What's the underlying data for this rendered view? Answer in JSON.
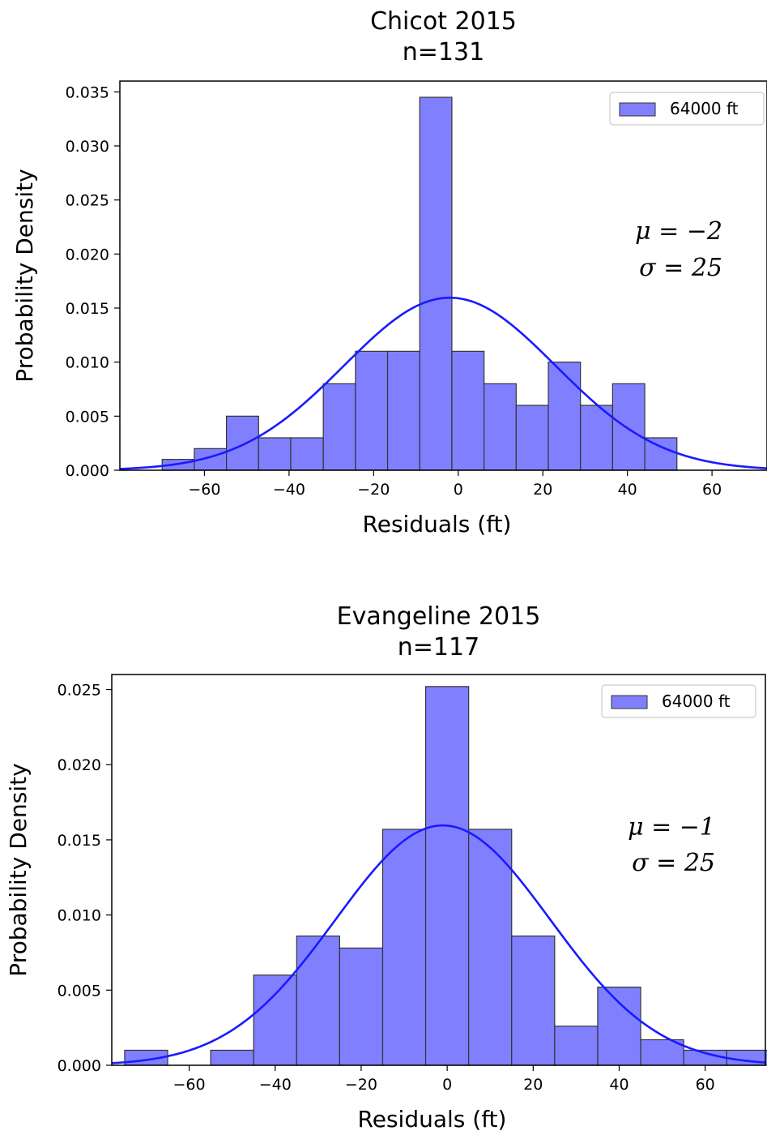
{
  "chart_data": [
    {
      "type": "bar",
      "title": "Chicot 2015",
      "subtitle": "n=131",
      "xlabel": "Residuals (ft)",
      "ylabel": "Probability Density",
      "xlim": [
        -80,
        73
      ],
      "ylim": [
        0,
        0.036
      ],
      "xticks": [
        -60,
        -40,
        -20,
        0,
        20,
        40,
        60
      ],
      "yticks": [
        0.0,
        0.005,
        0.01,
        0.015,
        0.02,
        0.025,
        0.03,
        0.035
      ],
      "ytick_decimals": 3,
      "bins": [
        {
          "x0": -70,
          "x1": -62.4,
          "value": 0.001
        },
        {
          "x0": -62.4,
          "x1": -54.8,
          "value": 0.002
        },
        {
          "x0": -54.8,
          "x1": -47.2,
          "value": 0.005
        },
        {
          "x0": -47.2,
          "x1": -39.6,
          "value": 0.003
        },
        {
          "x0": -39.6,
          "x1": -31.9,
          "value": 0.003
        },
        {
          "x0": -31.9,
          "x1": -24.3,
          "value": 0.008
        },
        {
          "x0": -24.3,
          "x1": -16.7,
          "value": 0.011
        },
        {
          "x0": -16.7,
          "x1": -9.1,
          "value": 0.011
        },
        {
          "x0": -9.1,
          "x1": -1.5,
          "value": 0.0345
        },
        {
          "x0": -1.5,
          "x1": 6.1,
          "value": 0.011
        },
        {
          "x0": 6.1,
          "x1": 13.7,
          "value": 0.008
        },
        {
          "x0": 13.7,
          "x1": 21.3,
          "value": 0.006
        },
        {
          "x0": 21.3,
          "x1": 28.9,
          "value": 0.01
        },
        {
          "x0": 28.9,
          "x1": 36.5,
          "value": 0.006
        },
        {
          "x0": 36.5,
          "x1": 44.1,
          "value": 0.008
        },
        {
          "x0": 44.1,
          "x1": 51.7,
          "value": 0.003
        }
      ],
      "fit": {
        "mu": -2,
        "sigma": 25
      },
      "legend": {
        "label": "64000 ft",
        "position": "top-right"
      },
      "stats": {
        "mu_text": "μ = −2",
        "sigma_text": "σ = 25"
      },
      "bar_color": "#8080ff",
      "line_color": "#1a1aff"
    },
    {
      "type": "bar",
      "title": "Evangeline 2015",
      "subtitle": "n=117",
      "xlabel": "Residuals (ft)",
      "ylabel": "Probability Density",
      "xlim": [
        -78,
        74
      ],
      "ylim": [
        0,
        0.026
      ],
      "xticks": [
        -60,
        -40,
        -20,
        0,
        20,
        40,
        60
      ],
      "yticks": [
        0.0,
        0.005,
        0.01,
        0.015,
        0.02,
        0.025
      ],
      "ytick_decimals": 3,
      "bins": [
        {
          "x0": -75,
          "x1": -65,
          "value": 0.001
        },
        {
          "x0": -65,
          "x1": -55,
          "value": 0.0
        },
        {
          "x0": -55,
          "x1": -45,
          "value": 0.001
        },
        {
          "x0": -45,
          "x1": -35,
          "value": 0.006
        },
        {
          "x0": -35,
          "x1": -25,
          "value": 0.0086
        },
        {
          "x0": -25,
          "x1": -15,
          "value": 0.0078
        },
        {
          "x0": -15,
          "x1": -5,
          "value": 0.0157
        },
        {
          "x0": -5,
          "x1": 5,
          "value": 0.0252
        },
        {
          "x0": 5,
          "x1": 15,
          "value": 0.0157
        },
        {
          "x0": 15,
          "x1": 25,
          "value": 0.0086
        },
        {
          "x0": 25,
          "x1": 35,
          "value": 0.0026
        },
        {
          "x0": 35,
          "x1": 45,
          "value": 0.0052
        },
        {
          "x0": 45,
          "x1": 55,
          "value": 0.0017
        },
        {
          "x0": 55,
          "x1": 65,
          "value": 0.001
        },
        {
          "x0": 65,
          "x1": 75,
          "value": 0.001
        }
      ],
      "fit": {
        "mu": -1,
        "sigma": 25
      },
      "legend": {
        "label": "64000 ft",
        "position": "top-right"
      },
      "stats": {
        "mu_text": "μ = −1",
        "sigma_text": "σ = 25"
      },
      "bar_color": "#8080ff",
      "line_color": "#1a1aff"
    }
  ]
}
